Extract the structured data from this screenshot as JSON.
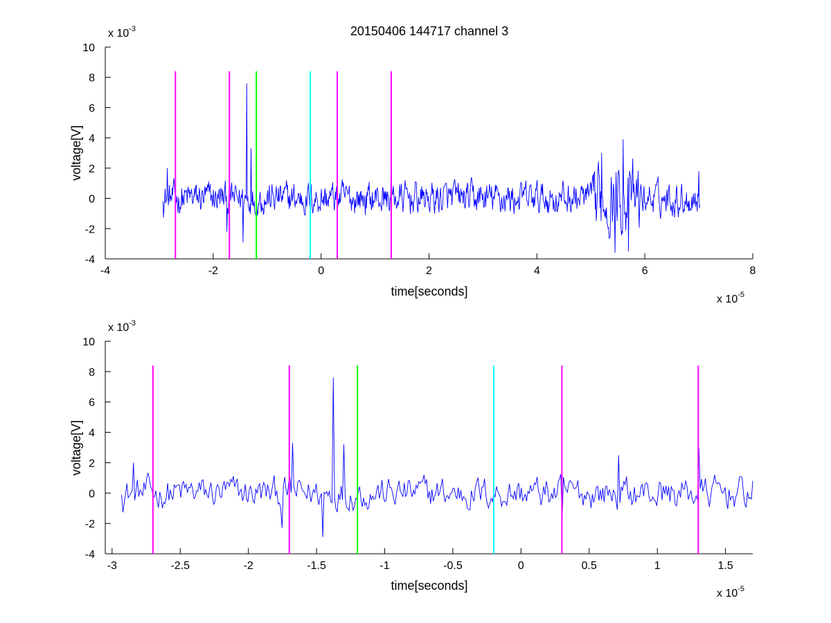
{
  "chart_data": [
    {
      "type": "line",
      "title": "20150406 144717 channel 3",
      "xlabel": "time[seconds]",
      "ylabel": "voltage[V]",
      "x_exponent_label": {
        "base": "x 10",
        "exp": "-5"
      },
      "y_exponent_label": {
        "base": "x 10",
        "exp": "-3"
      },
      "xlim": [
        -4,
        8
      ],
      "ylim": [
        -4,
        10
      ],
      "xticks": [
        "-4",
        "-2",
        "0",
        "2",
        "4",
        "6",
        "8"
      ],
      "yticks": [
        "-4",
        "-2",
        "0",
        "2",
        "4",
        "6",
        "8",
        "10"
      ],
      "grid": false,
      "series": [
        {
          "color": "#0000ff",
          "x_start": -2.93,
          "x_end": 7.02,
          "samples": 1000,
          "description_points": [
            [
              -2.93,
              -0.2
            ],
            [
              -2.85,
              2.0
            ],
            [
              -1.75,
              -2.2
            ],
            [
              -1.45,
              -2.9
            ],
            [
              -1.38,
              7.6
            ],
            [
              -1.3,
              3.3
            ],
            [
              1.3,
              3.0
            ],
            [
              5.1,
              -1.5
            ],
            [
              5.2,
              3.0
            ],
            [
              5.45,
              -3.6
            ],
            [
              5.6,
              3.9
            ],
            [
              5.7,
              -3.5
            ],
            [
              7.0,
              1.8
            ]
          ]
        }
      ],
      "markers": [
        {
          "x": -2.7,
          "color": "#ff00ff",
          "top": 8.4
        },
        {
          "x": -1.7,
          "color": "#ff00ff",
          "top": 8.4
        },
        {
          "x": -1.2,
          "color": "#00ff00",
          "top": 8.4
        },
        {
          "x": -0.2,
          "color": "#00ffff",
          "top": 8.4
        },
        {
          "x": 0.3,
          "color": "#ff00ff",
          "top": 8.4
        },
        {
          "x": 1.3,
          "color": "#ff00ff",
          "top": 8.4
        }
      ]
    },
    {
      "type": "line",
      "title": "",
      "xlabel": "time[seconds]",
      "ylabel": "voltage[V]",
      "x_exponent_label": {
        "base": "x 10",
        "exp": "-5"
      },
      "y_exponent_label": {
        "base": "x 10",
        "exp": "-3"
      },
      "xlim": [
        -3.05,
        1.7
      ],
      "ylim": [
        -4,
        10
      ],
      "xticks": [
        "-3",
        "-2.5",
        "-2",
        "-1.5",
        "-1",
        "-0.5",
        "0",
        "0.5",
        "1",
        "1.5"
      ],
      "xtick_values": [
        -3,
        -2.5,
        -2,
        -1.5,
        -1,
        -0.5,
        0,
        0.5,
        1,
        1.5
      ],
      "yticks": [
        "-4",
        "-2",
        "0",
        "2",
        "4",
        "6",
        "8",
        "10"
      ],
      "grid": false,
      "series": [
        {
          "color": "#0000ff",
          "x_start": -2.93,
          "x_end": 1.7,
          "samples": 480,
          "description_points": [
            [
              -2.93,
              -0.1
            ],
            [
              -2.84,
              2.0
            ],
            [
              -1.75,
              -2.3
            ],
            [
              -1.68,
              3.3
            ],
            [
              -1.45,
              -2.9
            ],
            [
              -1.38,
              7.6
            ],
            [
              -1.3,
              3.2
            ],
            [
              0.3,
              -1.9
            ],
            [
              0.72,
              2.5
            ],
            [
              1.3,
              3.0
            ],
            [
              1.7,
              0.8
            ]
          ]
        }
      ],
      "markers": [
        {
          "x": -2.7,
          "color": "#ff00ff",
          "top": 8.4
        },
        {
          "x": -1.7,
          "color": "#ff00ff",
          "top": 8.4
        },
        {
          "x": -1.2,
          "color": "#00ff00",
          "top": 8.4
        },
        {
          "x": -0.2,
          "color": "#00ffff",
          "top": 8.4
        },
        {
          "x": 0.3,
          "color": "#ff00ff",
          "top": 8.4
        },
        {
          "x": 1.3,
          "color": "#ff00ff",
          "top": 8.4
        }
      ]
    }
  ]
}
